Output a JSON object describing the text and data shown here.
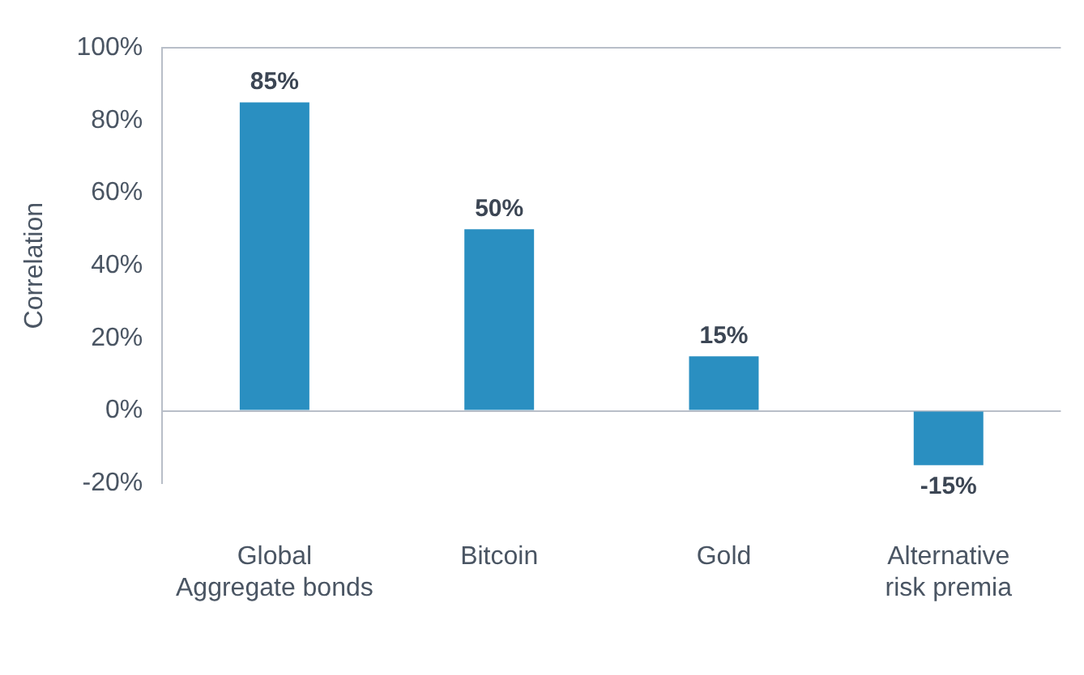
{
  "chart_data": {
    "type": "bar",
    "ylabel": "Correlation",
    "categories": [
      "Global Aggregate bonds",
      "Bitcoin",
      "Gold",
      "Alternative risk premia"
    ],
    "values": [
      85,
      50,
      15,
      -15
    ],
    "color": "#2a8fc1",
    "ylim": [
      -20,
      100
    ],
    "yticks": [
      {
        "value": -20,
        "label": "-20%"
      },
      {
        "value": 0,
        "label": "0%"
      },
      {
        "value": 20,
        "label": "20%"
      },
      {
        "value": 40,
        "label": "40%"
      },
      {
        "value": 60,
        "label": "60%"
      },
      {
        "value": 80,
        "label": "80%"
      },
      {
        "value": 100,
        "label": "100%"
      }
    ],
    "value_labels": [
      "85%",
      "50%",
      "15%",
      "-15%"
    ],
    "legend": false
  }
}
